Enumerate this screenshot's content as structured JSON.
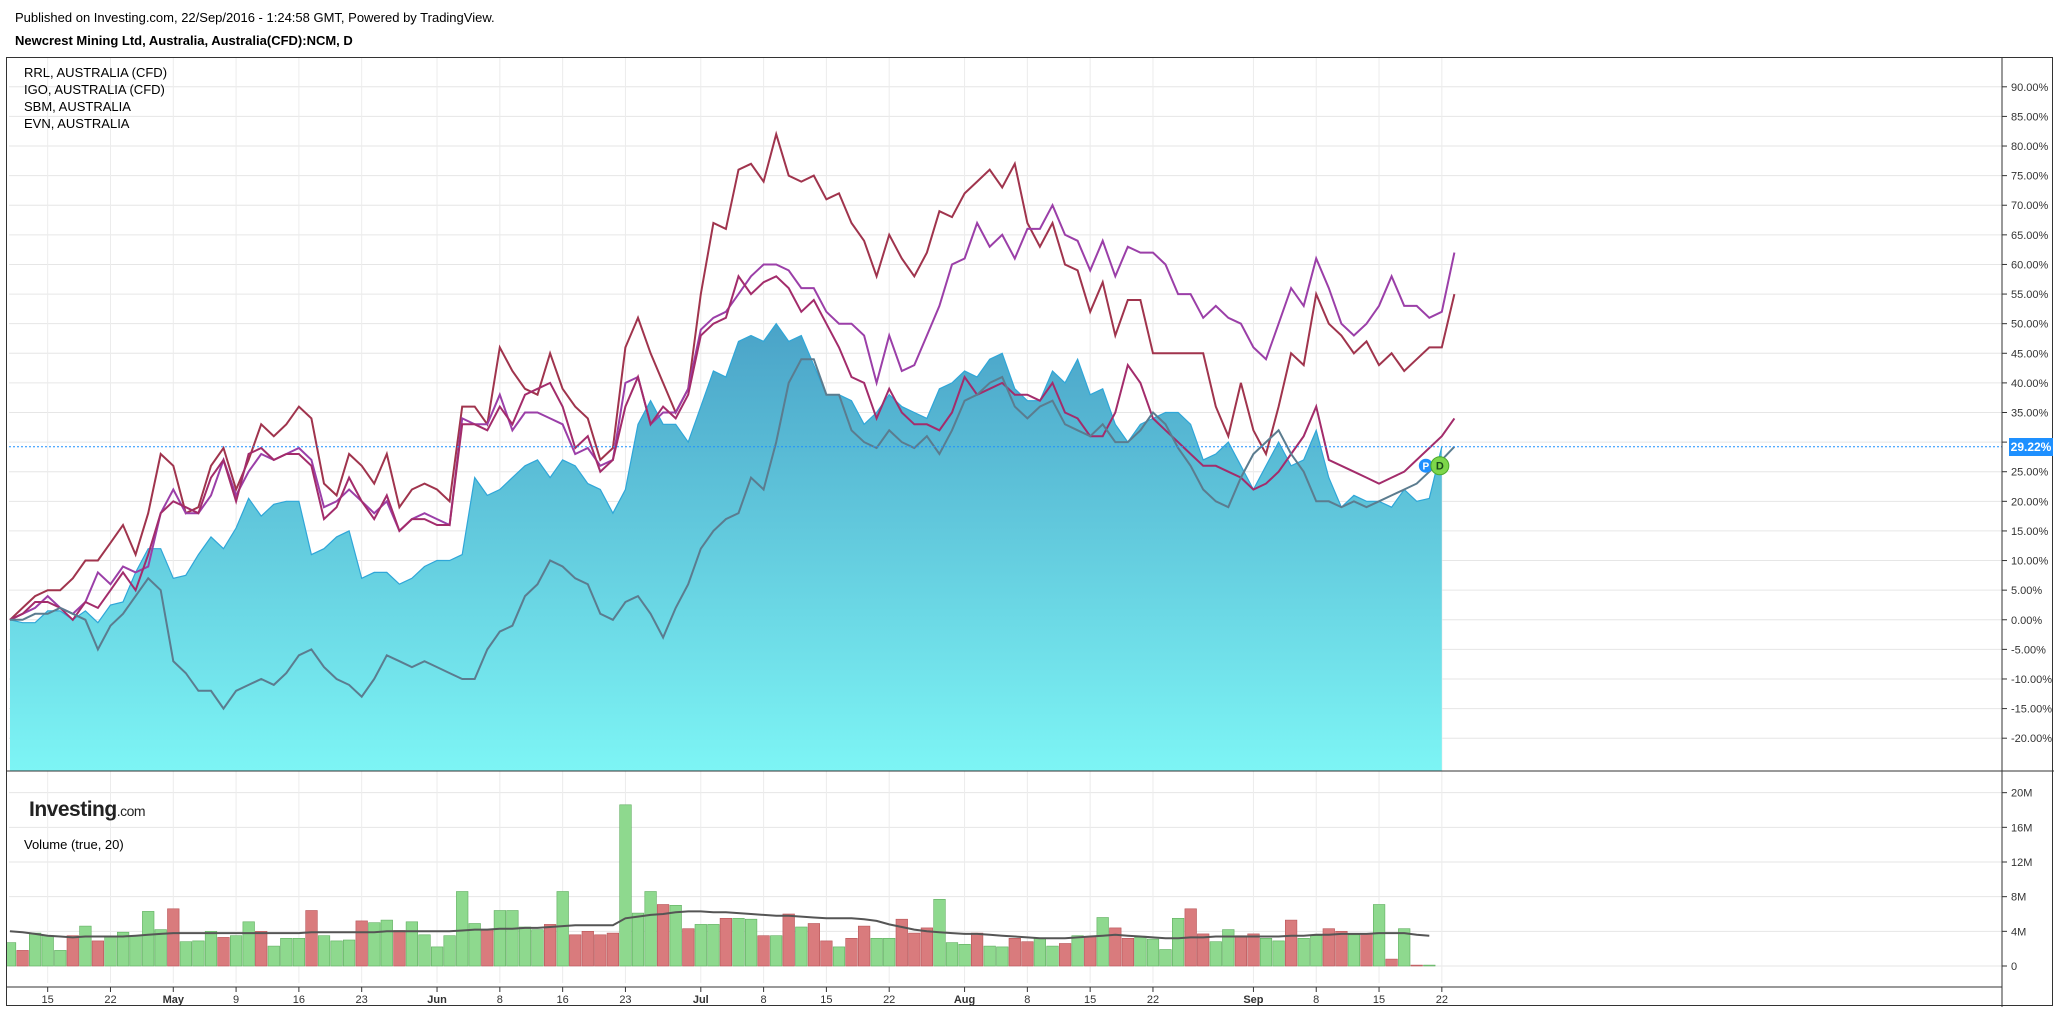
{
  "header": {
    "published": "Published on Investing.com, 22/Sep/2016 - 1:24:58 GMT, Powered by TradingView.",
    "symbol": "Newcrest Mining Ltd, Australia, Australia(CFD):NCM, D"
  },
  "legend": [
    "RRL, AUSTRALIA (CFD)",
    "IGO, AUSTRALIA (CFD)",
    "SBM, AUSTRALIA",
    "EVN, AUSTRALIA"
  ],
  "volume_title": "Volume (true, 20)",
  "logo": {
    "main": "Investing",
    "suffix": ".com"
  },
  "price_label": "29.22%",
  "markers": {
    "p": "P",
    "d": "D"
  },
  "colors": {
    "main_area_top": "#4aa3c8",
    "main_area_bottom": "#7df5f5",
    "main_line": "#2fa6d8",
    "rrl": "#a0344d",
    "igo": "#9b3fa8",
    "sbm": "#a32c6b",
    "evn": "#5b7c8f",
    "vol_up": "#8ed98e",
    "vol_down": "#d97b7d",
    "vol_ma": "#555555",
    "price_line": "#1e90ff"
  },
  "chart_data": [
    {
      "type": "area",
      "title": "Newcrest Mining Ltd, Australia, Australia(CFD):NCM, D",
      "ylabel": "",
      "yunit": "%",
      "ylim": [
        -22.5,
        92.5
      ],
      "yticks": [
        "90.00%",
        "85.00%",
        "80.00%",
        "75.00%",
        "70.00%",
        "65.00%",
        "60.00%",
        "55.00%",
        "50.00%",
        "45.00%",
        "40.00%",
        "35.00%",
        "30.00%",
        "25.00%",
        "20.00%",
        "15.00%",
        "10.00%",
        "5.00%",
        "0.00%",
        "-5.00%",
        "-10.00%",
        "-15.00%",
        "-20.00%"
      ],
      "xticks": [
        {
          "label": "15",
          "day": 3
        },
        {
          "label": "22",
          "day": 8
        },
        {
          "label": "May",
          "day": 13
        },
        {
          "label": "9",
          "day": 18
        },
        {
          "label": "16",
          "day": 23
        },
        {
          "label": "23",
          "day": 28
        },
        {
          "label": "Jun",
          "day": 34
        },
        {
          "label": "8",
          "day": 39
        },
        {
          "label": "16",
          "day": 44
        },
        {
          "label": "23",
          "day": 49
        },
        {
          "label": "Jul",
          "day": 55
        },
        {
          "label": "8",
          "day": 60
        },
        {
          "label": "15",
          "day": 65
        },
        {
          "label": "22",
          "day": 70
        },
        {
          "label": "Aug",
          "day": 76
        },
        {
          "label": "8",
          "day": 81
        },
        {
          "label": "15",
          "day": 86
        },
        {
          "label": "22",
          "day": 91
        },
        {
          "label": "Sep",
          "day": 99
        },
        {
          "label": "8",
          "day": 104
        },
        {
          "label": "15",
          "day": 109
        },
        {
          "label": "22",
          "day": 114
        }
      ],
      "grid": true,
      "legend_position": "top-left",
      "series": [
        {
          "name": "NCM",
          "values": [
            0,
            -0.5,
            -0.5,
            1.5,
            1.5,
            0,
            1.5,
            -0.5,
            2.5,
            3,
            8,
            12,
            12,
            7,
            7.5,
            11,
            14,
            12,
            15.5,
            20.5,
            17.5,
            19.5,
            20,
            20,
            11,
            12,
            14,
            15,
            7,
            8,
            8,
            6,
            7,
            9,
            10,
            10,
            11,
            24,
            21,
            22,
            24,
            26,
            27,
            24,
            27,
            26,
            23,
            22,
            18,
            22,
            33,
            37,
            33,
            33,
            30,
            36,
            42,
            41,
            47,
            48,
            47,
            50,
            47,
            48,
            43,
            38,
            38,
            37,
            33,
            35,
            38,
            36,
            35,
            34,
            39,
            40,
            42,
            41,
            44,
            45,
            39,
            37,
            37,
            42,
            40,
            44,
            38,
            39,
            33,
            30,
            33,
            34,
            35,
            35,
            33,
            27,
            28,
            30,
            26,
            22,
            26,
            30,
            26,
            27,
            32,
            24,
            19,
            21,
            20,
            20,
            19,
            22,
            20,
            20.5,
            29.22
          ]
        },
        {
          "name": "RRL",
          "values": [
            0,
            2,
            4,
            5,
            5,
            7,
            10,
            10,
            13,
            16,
            11,
            18,
            28,
            26,
            18,
            19,
            26,
            29,
            22,
            27,
            33,
            31,
            33,
            36,
            34,
            23,
            21,
            28,
            26,
            23,
            28,
            19,
            22,
            23,
            22,
            20,
            36,
            36,
            33,
            46,
            42,
            39,
            38,
            45,
            39,
            36,
            34,
            27,
            29,
            46,
            51,
            45,
            40,
            35,
            39,
            55,
            67,
            66,
            76,
            77,
            74,
            82,
            75,
            74,
            75,
            71,
            72,
            67,
            64,
            58,
            65,
            61,
            58,
            62,
            69,
            68,
            72,
            74,
            76,
            73,
            77,
            67,
            63,
            67,
            60,
            59,
            52,
            57,
            48,
            54,
            54,
            45,
            45,
            45,
            45,
            45,
            36,
            31,
            40,
            32,
            28,
            36,
            45,
            43,
            55,
            50,
            48,
            45,
            47,
            43,
            45,
            42,
            44,
            46,
            46,
            55
          ]
        },
        {
          "name": "IGO",
          "values": [
            0,
            1,
            2,
            4,
            2,
            1,
            3,
            8,
            6,
            9,
            8,
            9,
            18,
            22,
            18,
            18,
            21,
            27,
            21,
            25,
            28,
            27,
            28,
            29,
            27,
            19,
            20,
            22,
            20,
            18,
            20,
            15,
            17,
            18,
            17,
            16,
            34,
            33,
            33,
            38,
            32,
            35,
            35,
            34,
            33,
            28,
            29,
            26,
            27,
            40,
            41,
            33,
            35,
            35,
            39,
            49,
            51,
            52,
            55,
            58,
            60,
            60,
            59,
            56,
            56,
            52,
            50,
            50,
            48,
            40,
            48,
            42,
            43,
            48,
            53,
            60,
            61,
            67,
            63,
            65,
            61,
            66,
            66,
            70,
            65,
            64,
            59,
            64,
            58,
            63,
            62,
            62,
            60,
            55,
            55,
            51,
            53,
            51,
            50,
            46,
            44,
            50,
            56,
            53,
            61,
            56,
            50,
            48,
            50,
            53,
            58,
            53,
            53,
            51,
            52,
            62
          ]
        },
        {
          "name": "SBM",
          "values": [
            0,
            1,
            3,
            3,
            2,
            0,
            3,
            2,
            5,
            8,
            5,
            11,
            18,
            20,
            19,
            18,
            24,
            27,
            20,
            28,
            29,
            27,
            28,
            28,
            26,
            17,
            19,
            24,
            20,
            17,
            21,
            15,
            17,
            17,
            16,
            16,
            33,
            33,
            32,
            36,
            33,
            38,
            39,
            40,
            36,
            29,
            31,
            25,
            27,
            36,
            41,
            33,
            36,
            34,
            38,
            48,
            50,
            51,
            58,
            55,
            57,
            58,
            56,
            52,
            54,
            50,
            46,
            41,
            40,
            34,
            39,
            35,
            33,
            33,
            32,
            35,
            41,
            38,
            39,
            40,
            38,
            38,
            37,
            40,
            35,
            34,
            31,
            31,
            35,
            43,
            40,
            34,
            32,
            30,
            28,
            26,
            26,
            25,
            24,
            22,
            23,
            25,
            28,
            31,
            36,
            27,
            26,
            25,
            24,
            23,
            24,
            25,
            27,
            29,
            31,
            34
          ]
        },
        {
          "name": "EVN",
          "values": [
            0,
            0,
            1,
            1,
            2,
            1,
            0,
            -5,
            -1,
            1,
            4,
            7,
            5,
            -7,
            -9,
            -12,
            -12,
            -15,
            -12,
            -11,
            -10,
            -11,
            -9,
            -6,
            -5,
            -8,
            -10,
            -11,
            -13,
            -10,
            -6,
            -7,
            -8,
            -7,
            -8,
            -9,
            -10,
            -10,
            -5,
            -2,
            -1,
            4,
            6,
            10,
            9,
            7,
            6,
            1,
            0,
            3,
            4,
            1,
            -3,
            2,
            6,
            12,
            15,
            17,
            18,
            24,
            22,
            30,
            40,
            44,
            44,
            38,
            38,
            32,
            30,
            29,
            32,
            30,
            29,
            31,
            28,
            32,
            37,
            38,
            40,
            41,
            36,
            34,
            36,
            37,
            33,
            32,
            31,
            33,
            30,
            30,
            32,
            35,
            33,
            29,
            26,
            22,
            20,
            19,
            24,
            28,
            30,
            32,
            28,
            25,
            20,
            20,
            19,
            20,
            19,
            20,
            21,
            22,
            23,
            25,
            27,
            29.22
          ]
        }
      ]
    },
    {
      "type": "bar",
      "title": "Volume (true, 20)",
      "ylim": [
        -1.5,
        21
      ],
      "yticks": [
        "20M",
        "16M",
        "12M",
        "8M",
        "4M",
        "0"
      ],
      "grid": true,
      "series": [
        {
          "name": "Volume",
          "values": [
            2.7,
            1.8,
            3.8,
            3.5,
            1.8,
            3.5,
            4.6,
            2.9,
            3.4,
            3.9,
            3.5,
            6.3,
            4.2,
            6.6,
            2.8,
            2.9,
            4,
            3.3,
            3.5,
            5.1,
            4,
            2.3,
            3.2,
            3.2,
            6.4,
            3.5,
            2.9,
            3,
            5.2,
            5,
            5.3,
            4.1,
            5.1,
            3.6,
            2.2,
            3.5,
            8.6,
            4.9,
            4.2,
            6.4,
            6.4,
            4.5,
            4.2,
            4.8,
            8.6,
            3.6,
            4,
            3.6,
            3.8,
            18.6,
            6.1,
            8.6,
            7.1,
            7,
            4.3,
            4.8,
            4.8,
            5.5,
            5.5,
            5.4,
            3.5,
            3.5,
            6,
            4.5,
            4.9,
            2.9,
            2.2,
            3.2,
            4.6,
            3.2,
            3.2,
            5.4,
            3.8,
            4.4,
            7.7,
            2.7,
            2.5,
            3.8,
            2.3,
            2.2,
            3.2,
            2.8,
            3.2,
            2.3,
            2.6,
            3.5,
            3.4,
            5.6,
            4.4,
            3.2,
            3.3,
            3.1,
            1.9,
            5.5,
            6.6,
            3.7,
            2.8,
            4.2,
            3.5,
            3.7,
            3.2,
            2.9,
            5.3,
            3.2,
            3.5,
            4.3,
            4,
            3.6,
            3.7,
            7.1,
            0.8,
            4.3,
            0.1,
            0.1
          ]
        },
        {
          "name": "Volume MA",
          "values": [
            4,
            3.9,
            3.7,
            3.5,
            3.4,
            3.3,
            3.4,
            3.4,
            3.4,
            3.4,
            3.5,
            3.6,
            3.7,
            3.8,
            3.8,
            3.8,
            3.8,
            3.8,
            3.8,
            3.8,
            3.8,
            3.8,
            3.8,
            3.8,
            3.9,
            3.9,
            3.9,
            3.9,
            3.9,
            3.9,
            4,
            4,
            4,
            4,
            4,
            4,
            4.1,
            4.2,
            4.2,
            4.3,
            4.3,
            4.4,
            4.4,
            4.5,
            4.6,
            4.7,
            4.7,
            4.7,
            4.7,
            5.5,
            5.7,
            5.9,
            6,
            6.2,
            6.3,
            6.3,
            6.2,
            6.2,
            6.1,
            6,
            5.9,
            5.8,
            5.8,
            5.7,
            5.6,
            5.5,
            5.5,
            5.5,
            5.4,
            5.2,
            4.8,
            4.5,
            4.2,
            4,
            3.9,
            3.8,
            3.7,
            3.7,
            3.6,
            3.5,
            3.4,
            3.3,
            3.2,
            3.2,
            3.2,
            3.3,
            3.4,
            3.5,
            3.6,
            3.5,
            3.4,
            3.3,
            3.2,
            3.2,
            3.3,
            3.3,
            3.4,
            3.4,
            3.4,
            3.4,
            3.4,
            3.4,
            3.5,
            3.5,
            3.6,
            3.6,
            3.7,
            3.7,
            3.7,
            3.8,
            3.8,
            3.8,
            3.6,
            3.5
          ]
        }
      ]
    }
  ]
}
